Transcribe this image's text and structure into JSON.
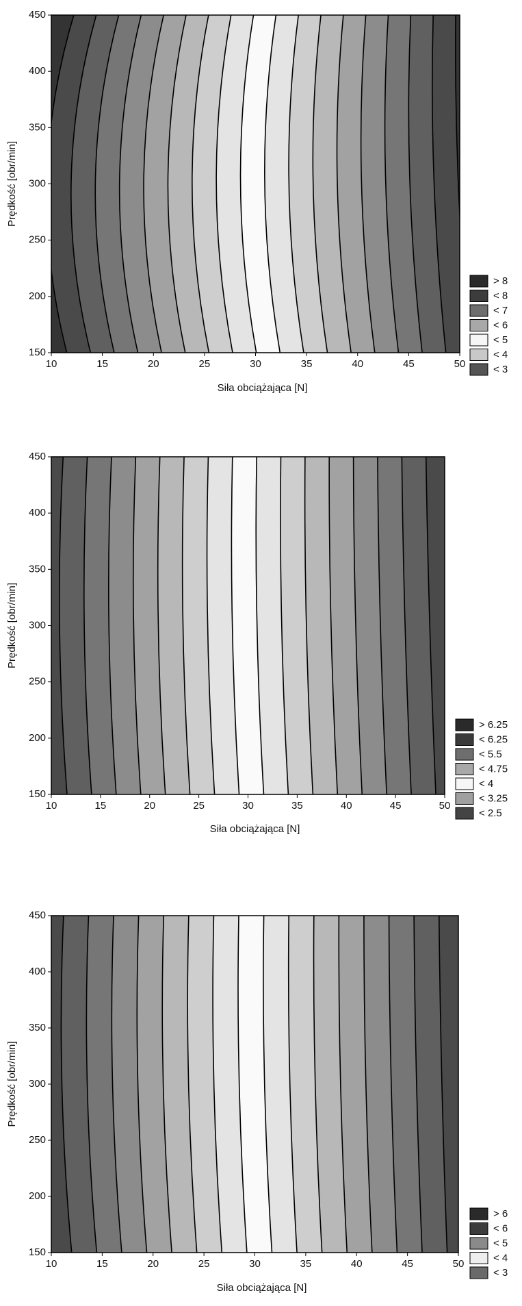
{
  "chart_data": [
    {
      "type": "contour",
      "xlabel": "Siła obciążająca [N]",
      "ylabel": "Prędkość [obr/min]",
      "xlim": [
        10,
        50
      ],
      "ylim": [
        150,
        450
      ],
      "xticks": [
        10,
        15,
        20,
        25,
        30,
        35,
        40,
        45,
        50
      ],
      "yticks": [
        150,
        200,
        250,
        300,
        350,
        400,
        450
      ],
      "series": [
        {
          "name": "> 8",
          "color": "#2a2a2a"
        },
        {
          "name": "< 8",
          "color": "#3c3c3c"
        },
        {
          "name": "< 7",
          "color": "#6e6e6e"
        },
        {
          "name": "< 6",
          "color": "#a8a8a8"
        },
        {
          "name": "< 5",
          "color": "#f6f6f6"
        },
        {
          "name": "< 4",
          "color": "#c8c8c8"
        },
        {
          "name": "< 3",
          "color": "#555555"
        }
      ]
    },
    {
      "type": "contour",
      "xlabel": "Siła obciążająca [N]",
      "ylabel": "Prędkość [obr/min]",
      "xlim": [
        10,
        50
      ],
      "ylim": [
        150,
        450
      ],
      "xticks": [
        10,
        15,
        20,
        25,
        30,
        35,
        40,
        45,
        50
      ],
      "yticks": [
        150,
        200,
        250,
        300,
        350,
        400,
        450
      ],
      "series": [
        {
          "name": "> 6.25",
          "color": "#2a2a2a"
        },
        {
          "name": "< 6.25",
          "color": "#3a3a3a"
        },
        {
          "name": "< 5.5",
          "color": "#6e6e6e"
        },
        {
          "name": "< 4.75",
          "color": "#a8a8a8"
        },
        {
          "name": "< 4",
          "color": "#f6f6f6"
        },
        {
          "name": "< 3.25",
          "color": "#a0a0a0"
        },
        {
          "name": "< 2.5",
          "color": "#444444"
        }
      ]
    },
    {
      "type": "contour",
      "xlabel": "Siła obciążająca [N]",
      "ylabel": "Prędkość [obr/min]",
      "xlim": [
        10,
        50
      ],
      "ylim": [
        150,
        450
      ],
      "xticks": [
        10,
        15,
        20,
        25,
        30,
        35,
        40,
        45,
        50
      ],
      "yticks": [
        150,
        200,
        250,
        300,
        350,
        400,
        450
      ],
      "series": [
        {
          "name": "> 6",
          "color": "#2a2a2a"
        },
        {
          "name": "< 6",
          "color": "#3c3c3c"
        },
        {
          "name": "< 5",
          "color": "#8a8a8a"
        },
        {
          "name": "< 4",
          "color": "#eeeeee"
        },
        {
          "name": "< 3",
          "color": "#6a6a6a"
        }
      ]
    }
  ]
}
